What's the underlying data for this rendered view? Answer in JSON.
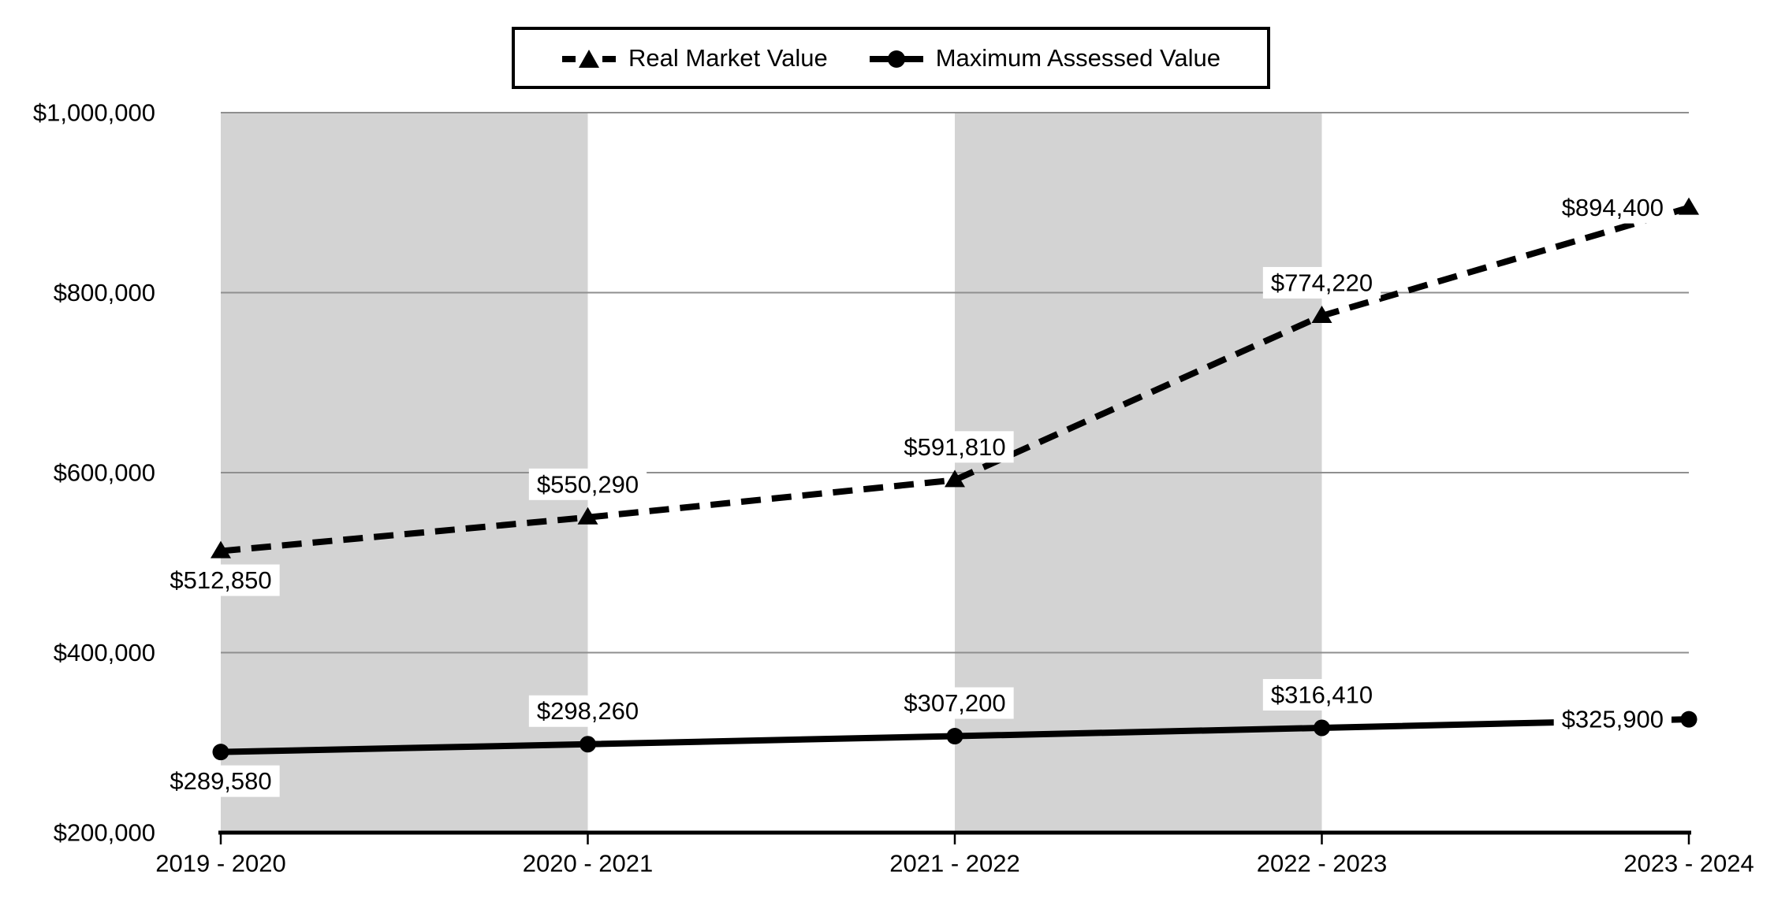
{
  "legend": {
    "items": [
      {
        "label": "Real Market Value",
        "marker": "dashed-line-triangle"
      },
      {
        "label": "Maximum Assessed Value",
        "marker": "solid-line-circle"
      }
    ]
  },
  "chart_data": {
    "type": "line",
    "title": "",
    "categories": [
      "2019 - 2020",
      "2020 - 2021",
      "2021 - 2022",
      "2022 - 2023",
      "2023 - 2024"
    ],
    "series": [
      {
        "name": "Real Market Value",
        "values": [
          512850,
          550290,
          591810,
          774220,
          894400
        ],
        "labels": [
          "$512,850",
          "$550,290",
          "$591,810",
          "$774,220",
          "$894,400"
        ],
        "label_positions": [
          "below",
          "above",
          "above",
          "above",
          "left"
        ],
        "line_style": "dashed",
        "marker": "triangle"
      },
      {
        "name": "Maximum Assessed Value",
        "values": [
          289580,
          298260,
          307200,
          316410,
          325900
        ],
        "labels": [
          "$289,580",
          "$298,260",
          "$307,200",
          "$316,410",
          "$325,900"
        ],
        "label_positions": [
          "below",
          "above",
          "above",
          "above",
          "left"
        ],
        "line_style": "solid",
        "marker": "circle"
      }
    ],
    "y_axis": {
      "min": 200000,
      "max": 1000000,
      "tick_interval": 200000,
      "tick_labels": [
        "$200,000",
        "$400,000",
        "$600,000",
        "$800,000",
        "$1,000,000"
      ]
    },
    "x_axis": {
      "tick_labels": [
        "2019 - 2020",
        "2020 - 2021",
        "2021 - 2022",
        "2022 - 2023",
        "2023 - 2024"
      ]
    },
    "plot_bands": [
      [
        0,
        1
      ],
      [
        2,
        3
      ]
    ],
    "grid": true,
    "legend_position": "top",
    "colors": {
      "series": "#000000",
      "gridline": "#8f8f8f",
      "band": "#d3d3d3",
      "background": "#ffffff",
      "label_background": "#ffffff",
      "axis": "#000000"
    }
  }
}
